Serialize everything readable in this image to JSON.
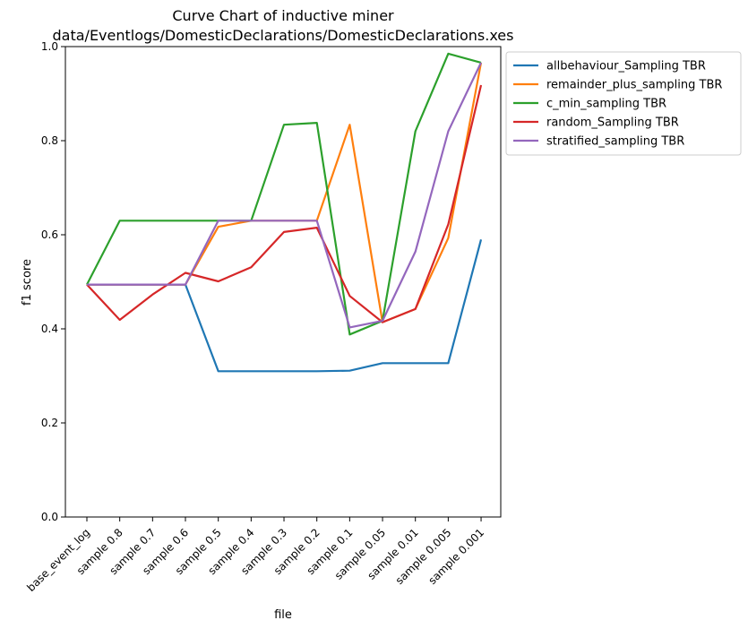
{
  "chart_data": {
    "type": "line",
    "title": "Curve Chart of inductive miner",
    "subtitle": "data/Eventlogs/DomesticDeclarations/DomesticDeclarations.xes",
    "xlabel": "file",
    "ylabel": "f1 score",
    "ylim": [
      0.0,
      1.0
    ],
    "yticks": [
      "0.0",
      "0.2",
      "0.4",
      "0.6",
      "0.8",
      "1.0"
    ],
    "yticks_values": [
      0.0,
      0.2,
      0.4,
      0.6,
      0.8,
      1.0
    ],
    "grid": false,
    "legend_position": "outside-top-right",
    "categories": [
      "base_event_log",
      "sample 0.8",
      "sample 0.7",
      "sample 0.6",
      "sample 0.5",
      "sample 0.4",
      "sample 0.3",
      "sample 0.2",
      "sample 0.1",
      "sample 0.05",
      "sample 0.01",
      "sample 0.005",
      "sample 0.001"
    ],
    "series": [
      {
        "name": "allbehaviour_Sampling TBR",
        "color": "#1f77b4",
        "values": [
          0.494,
          0.494,
          0.494,
          0.494,
          0.31,
          0.31,
          0.31,
          0.31,
          0.311,
          0.327,
          0.327,
          0.327,
          0.59
        ]
      },
      {
        "name": "remainder_plus_sampling TBR",
        "color": "#ff7f0e",
        "values": [
          0.494,
          0.494,
          0.494,
          0.494,
          0.617,
          0.63,
          0.63,
          0.63,
          0.834,
          0.414,
          0.442,
          0.593,
          0.966
        ]
      },
      {
        "name": "c_min_sampling TBR",
        "color": "#2ca02c",
        "values": [
          0.494,
          0.63,
          0.63,
          0.63,
          0.63,
          0.63,
          0.834,
          0.838,
          0.388,
          0.417,
          0.82,
          0.985,
          0.966
        ]
      },
      {
        "name": "random_Sampling TBR",
        "color": "#d62728",
        "values": [
          0.494,
          0.419,
          0.473,
          0.519,
          0.501,
          0.531,
          0.606,
          0.615,
          0.47,
          0.414,
          0.442,
          0.622,
          0.918
        ]
      },
      {
        "name": "stratified_sampling TBR",
        "color": "#9467bd",
        "values": [
          0.494,
          0.494,
          0.494,
          0.494,
          0.63,
          0.63,
          0.63,
          0.63,
          0.403,
          0.417,
          0.564,
          0.82,
          0.966
        ]
      }
    ]
  }
}
